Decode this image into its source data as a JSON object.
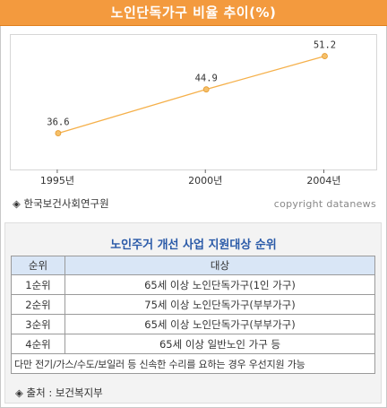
{
  "header": {
    "title": "노인단독가구 비율 추이(%)"
  },
  "chart_data": {
    "type": "line",
    "x": [
      "1995년",
      "2000년",
      "2004년"
    ],
    "x_numeric": [
      1995,
      2000,
      2004
    ],
    "series": [
      {
        "values": [
          36.6,
          44.9,
          51.2
        ]
      }
    ],
    "data_labels": [
      "36.6",
      "44.9",
      "51.2"
    ],
    "ylim": [
      29.4,
      55.2
    ],
    "xlim": [
      1993.4,
      2005.8
    ],
    "grid": false,
    "colors": {
      "line": "#f5b04a",
      "point": "#f5c06a",
      "axis": "#666666"
    }
  },
  "source_line": "◈ 한국보건사회연구원",
  "copyright": "copyright datanews",
  "table": {
    "title": "노인주거 개선 사업 지원대상 순위",
    "headers": [
      "순위",
      "대상"
    ],
    "rows": [
      {
        "rank": "1순위",
        "target": "65세 이상 노인단독가구(1인 가구)"
      },
      {
        "rank": "2순위",
        "target": "75세 이상 노인단독가구(부부가구)"
      },
      {
        "rank": "3순위",
        "target": "65세 이상 노인단독가구(부부가구)"
      },
      {
        "rank": "4순위",
        "target": "65세 이상 일반노인 가구 등"
      }
    ],
    "note": "다만 전기/가스/수도/보일러 등 신속한 수리를 요하는 경우 우선지원 가능"
  },
  "footer_source": "◈ 출처 : 보건복지부",
  "colors": {
    "banner": "#f39a3e",
    "table_header": "#d9e6f6",
    "panel_title": "#2a5aa8"
  }
}
